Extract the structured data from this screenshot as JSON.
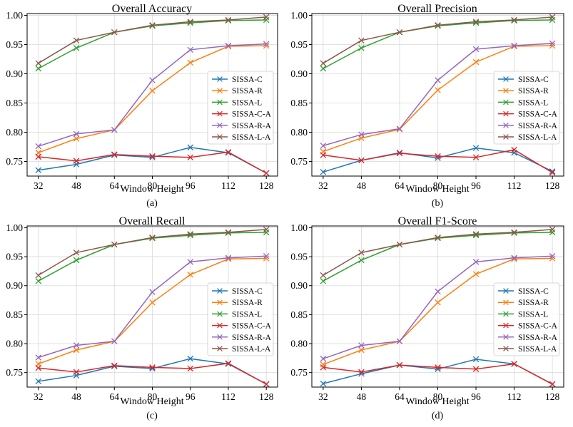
{
  "figure": {
    "series_colors": [
      "#1f77b4",
      "#ff7f0e",
      "#2ca02c",
      "#d62728",
      "#9467bd",
      "#8c564b"
    ]
  },
  "chart_data": [
    {
      "type": "line",
      "panel_label": "(a)",
      "title": "Overall Accuracy",
      "xlabel": "Window Height",
      "ylabel": "",
      "x": [
        32,
        48,
        64,
        80,
        96,
        112,
        128
      ],
      "x_tick_labels": [
        "32",
        "48",
        "64",
        "80",
        "96",
        "112",
        "128"
      ],
      "ylim": [
        0.725,
        1.003
      ],
      "y_ticks": [
        0.75,
        0.8,
        0.85,
        0.9,
        0.95,
        1.0
      ],
      "y_tick_labels": [
        "0.75",
        "0.80",
        "0.85",
        "0.90",
        "0.95",
        "1.00"
      ],
      "legend_position": "center-right",
      "marker": "x",
      "series": [
        {
          "name": "SISSA-C",
          "values": [
            0.735,
            0.745,
            0.761,
            0.757,
            0.774,
            0.765,
            0.73
          ]
        },
        {
          "name": "SISSA-R",
          "values": [
            0.765,
            0.789,
            0.804,
            0.871,
            0.919,
            0.947,
            0.948
          ]
        },
        {
          "name": "SISSA-L",
          "values": [
            0.909,
            0.944,
            0.971,
            0.982,
            0.987,
            0.991,
            0.992
          ]
        },
        {
          "name": "SISSA-C-A",
          "values": [
            0.758,
            0.751,
            0.762,
            0.759,
            0.757,
            0.766,
            0.73
          ]
        },
        {
          "name": "SISSA-R-A",
          "values": [
            0.776,
            0.797,
            0.804,
            0.889,
            0.941,
            0.948,
            0.951
          ]
        },
        {
          "name": "SISSA-L-A",
          "values": [
            0.918,
            0.957,
            0.971,
            0.983,
            0.989,
            0.992,
            0.997
          ]
        }
      ]
    },
    {
      "type": "line",
      "panel_label": "(b)",
      "title": "Overall Precision",
      "xlabel": "Window Height",
      "ylabel": "",
      "x": [
        32,
        48,
        64,
        80,
        96,
        112,
        128
      ],
      "x_tick_labels": [
        "32",
        "48",
        "64",
        "80",
        "96",
        "112",
        "128"
      ],
      "ylim": [
        0.725,
        1.003
      ],
      "y_ticks": [
        0.75,
        0.8,
        0.85,
        0.9,
        0.95,
        1.0
      ],
      "y_tick_labels": [
        "0.75",
        "0.80",
        "0.85",
        "0.90",
        "0.95",
        "1.00"
      ],
      "legend_position": "center-right",
      "marker": "x",
      "series": [
        {
          "name": "SISSA-C",
          "values": [
            0.732,
            0.752,
            0.765,
            0.756,
            0.773,
            0.765,
            0.733
          ]
        },
        {
          "name": "SISSA-R",
          "values": [
            0.767,
            0.79,
            0.805,
            0.872,
            0.92,
            0.947,
            0.948
          ]
        },
        {
          "name": "SISSA-L",
          "values": [
            0.909,
            0.944,
            0.971,
            0.982,
            0.987,
            0.991,
            0.992
          ]
        },
        {
          "name": "SISSA-C-A",
          "values": [
            0.761,
            0.752,
            0.764,
            0.759,
            0.757,
            0.77,
            0.731
          ]
        },
        {
          "name": "SISSA-R-A",
          "values": [
            0.777,
            0.796,
            0.806,
            0.889,
            0.942,
            0.948,
            0.952
          ]
        },
        {
          "name": "SISSA-L-A",
          "values": [
            0.918,
            0.957,
            0.971,
            0.983,
            0.989,
            0.992,
            0.997
          ]
        }
      ]
    },
    {
      "type": "line",
      "panel_label": "(c)",
      "title": "Overall Recall",
      "xlabel": "Window Height",
      "ylabel": "",
      "x": [
        32,
        48,
        64,
        80,
        96,
        112,
        128
      ],
      "x_tick_labels": [
        "32",
        "48",
        "64",
        "80",
        "96",
        "112",
        "128"
      ],
      "ylim": [
        0.725,
        1.003
      ],
      "y_ticks": [
        0.75,
        0.8,
        0.85,
        0.9,
        0.95,
        1.0
      ],
      "y_tick_labels": [
        "0.75",
        "0.80",
        "0.85",
        "0.90",
        "0.95",
        "1.00"
      ],
      "legend_position": "center-right",
      "marker": "x",
      "series": [
        {
          "name": "SISSA-C",
          "values": [
            0.735,
            0.745,
            0.761,
            0.757,
            0.774,
            0.765,
            0.73
          ]
        },
        {
          "name": "SISSA-R",
          "values": [
            0.765,
            0.789,
            0.804,
            0.871,
            0.919,
            0.946,
            0.947
          ]
        },
        {
          "name": "SISSA-L",
          "values": [
            0.908,
            0.944,
            0.971,
            0.982,
            0.987,
            0.991,
            0.992
          ]
        },
        {
          "name": "SISSA-C-A",
          "values": [
            0.758,
            0.751,
            0.762,
            0.759,
            0.757,
            0.766,
            0.73
          ]
        },
        {
          "name": "SISSA-R-A",
          "values": [
            0.776,
            0.797,
            0.804,
            0.889,
            0.941,
            0.948,
            0.951
          ]
        },
        {
          "name": "SISSA-L-A",
          "values": [
            0.918,
            0.957,
            0.971,
            0.983,
            0.989,
            0.992,
            0.997
          ]
        }
      ]
    },
    {
      "type": "line",
      "panel_label": "(d)",
      "title": "Overall F1-Score",
      "xlabel": "Window Height",
      "ylabel": "",
      "x": [
        32,
        48,
        64,
        80,
        96,
        112,
        128
      ],
      "x_tick_labels": [
        "32",
        "48",
        "64",
        "80",
        "96",
        "112",
        "128"
      ],
      "ylim": [
        0.725,
        1.003
      ],
      "y_ticks": [
        0.75,
        0.8,
        0.85,
        0.9,
        0.95,
        1.0
      ],
      "y_tick_labels": [
        "0.75",
        "0.80",
        "0.85",
        "0.90",
        "0.95",
        "1.00"
      ],
      "legend_position": "center-right",
      "marker": "x",
      "series": [
        {
          "name": "SISSA-C",
          "values": [
            0.731,
            0.748,
            0.763,
            0.756,
            0.773,
            0.765,
            0.73
          ]
        },
        {
          "name": "SISSA-R",
          "values": [
            0.764,
            0.789,
            0.804,
            0.871,
            0.92,
            0.946,
            0.947
          ]
        },
        {
          "name": "SISSA-L",
          "values": [
            0.908,
            0.944,
            0.971,
            0.982,
            0.987,
            0.991,
            0.992
          ]
        },
        {
          "name": "SISSA-C-A",
          "values": [
            0.759,
            0.751,
            0.763,
            0.759,
            0.756,
            0.765,
            0.73
          ]
        },
        {
          "name": "SISSA-R-A",
          "values": [
            0.774,
            0.797,
            0.804,
            0.89,
            0.941,
            0.948,
            0.951
          ]
        },
        {
          "name": "SISSA-L-A",
          "values": [
            0.918,
            0.957,
            0.971,
            0.983,
            0.989,
            0.992,
            0.997
          ]
        }
      ]
    }
  ]
}
